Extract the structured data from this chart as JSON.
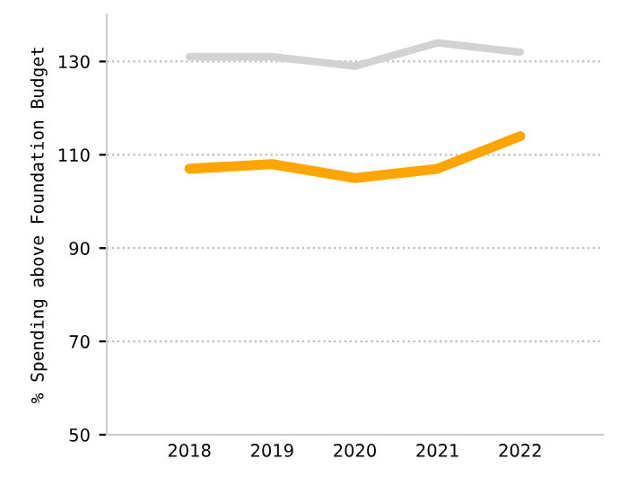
{
  "chart_data": {
    "type": "line",
    "ylabel": "% Spending above Foundation Budget",
    "categories": [
      "2018",
      "2019",
      "2020",
      "2021",
      "2022"
    ],
    "series": [
      {
        "color": "#d3d3d3",
        "values": [
          131,
          131,
          129,
          134,
          132
        ]
      },
      {
        "color": "#ffa500",
        "values": [
          107,
          108,
          105,
          107,
          114
        ]
      }
    ],
    "ylim": [
      50,
      140
    ],
    "yticks": [
      50,
      70,
      90,
      110,
      130
    ],
    "grid": "y",
    "marker": "none",
    "line_style": "solid",
    "legend": false
  }
}
